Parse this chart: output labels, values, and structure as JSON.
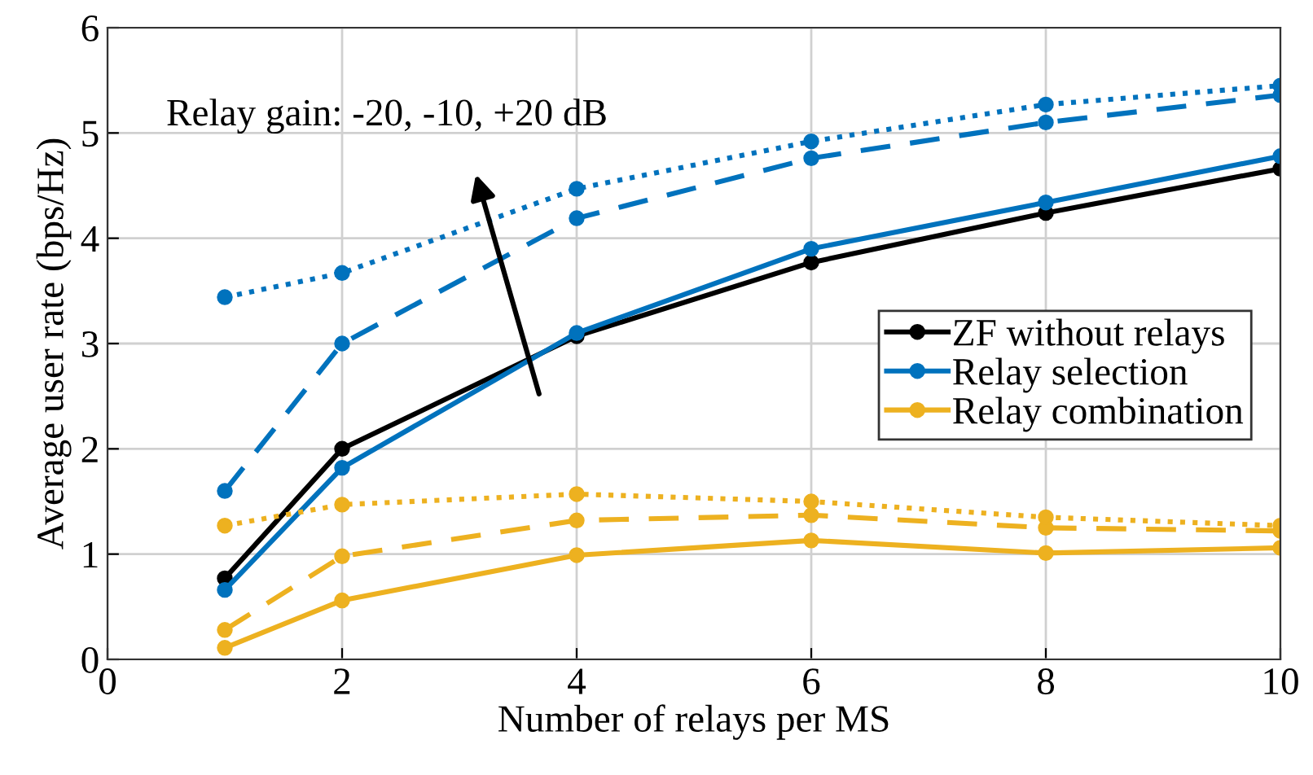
{
  "chart_data": {
    "type": "line",
    "xlabel": "Number of relays per MS",
    "ylabel": "Average user rate (bps/Hz)",
    "x": [
      1,
      2,
      4,
      6,
      8,
      10
    ],
    "xlim": [
      0,
      10
    ],
    "xticks": [
      0,
      2,
      4,
      6,
      8,
      10
    ],
    "ylim": [
      0,
      6
    ],
    "yticks": [
      0,
      1,
      2,
      3,
      4,
      5,
      6
    ],
    "grid": true,
    "legend": "right",
    "marker": "circle",
    "annotations": [
      "Relay gain: -20, -10, +20 dB"
    ],
    "series": [
      {
        "name": "ZF without relays",
        "color": "#000000",
        "line_style": "solid",
        "values": [
          0.77,
          2.0,
          3.07,
          3.77,
          4.24,
          4.66
        ]
      },
      {
        "name": "Relay selection",
        "color": "#0072bd",
        "line_style": "solid",
        "values": [
          0.66,
          1.82,
          3.1,
          3.9,
          4.34,
          4.78
        ]
      },
      {
        "color": "#0072bd",
        "line_style": "dashed",
        "values": [
          1.6,
          3.0,
          4.19,
          4.76,
          5.1,
          5.36
        ]
      },
      {
        "color": "#0072bd",
        "line_style": "dotted",
        "values": [
          3.44,
          3.67,
          4.47,
          4.92,
          5.27,
          5.45
        ]
      },
      {
        "name": "Relay combination",
        "color": "#edb120",
        "line_style": "solid",
        "values": [
          0.11,
          0.56,
          0.99,
          1.13,
          1.01,
          1.06
        ]
      },
      {
        "color": "#edb120",
        "line_style": "dashed",
        "values": [
          0.28,
          0.98,
          1.32,
          1.37,
          1.25,
          1.22
        ]
      },
      {
        "color": "#edb120",
        "line_style": "dotted",
        "values": [
          1.27,
          1.47,
          1.57,
          1.5,
          1.35,
          1.27
        ]
      }
    ]
  }
}
